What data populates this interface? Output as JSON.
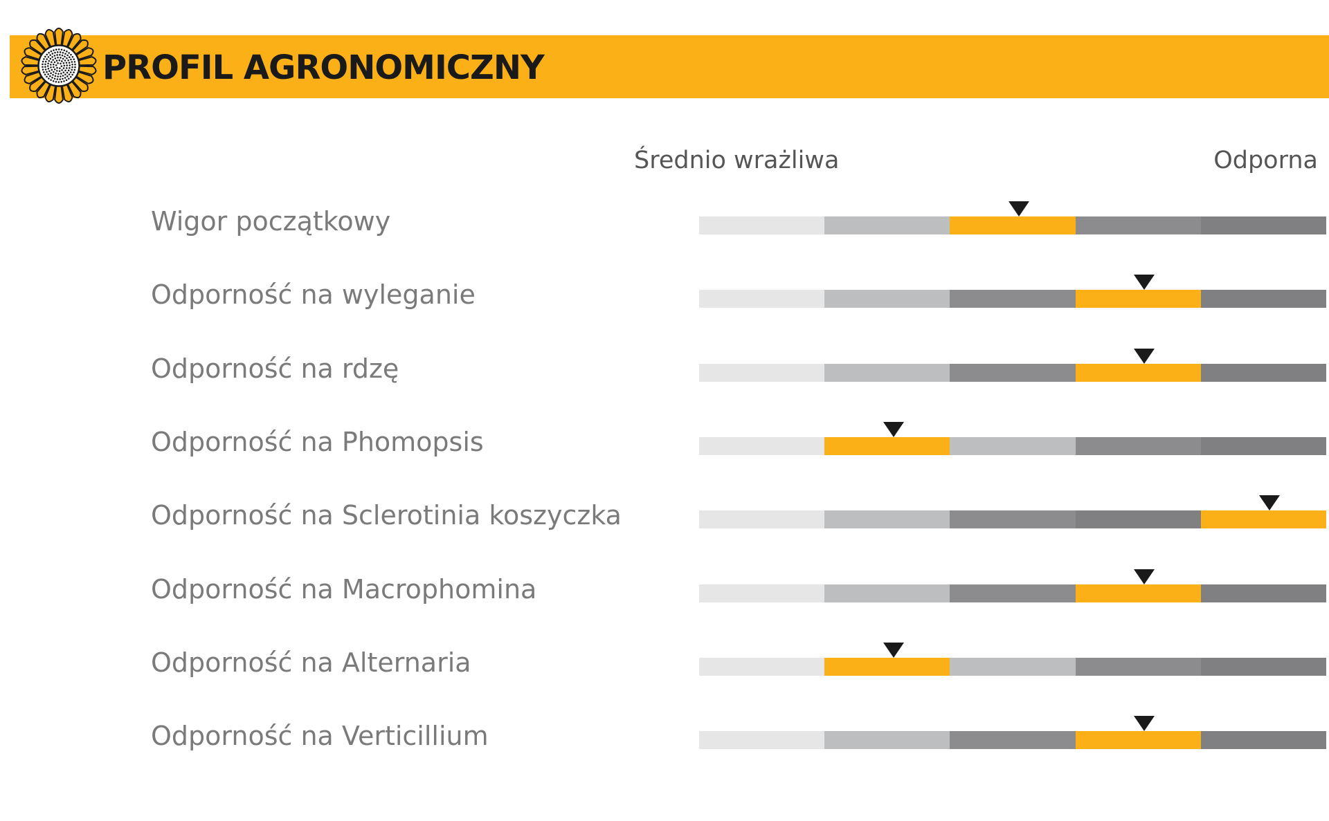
{
  "header": {
    "title": "PROFIL AGRONOMICZNY",
    "logo_icon": "sunflower-icon",
    "background_color": "#fbb017"
  },
  "scale": {
    "low_label": "Średnio wrażliwa",
    "high_label": "Odporna"
  },
  "colors": {
    "segments": [
      "#e6e6e7",
      "#bdbebf",
      "#8c8c8e",
      "#808082",
      "#77777a"
    ],
    "highlight": "#fbb017",
    "marker": "#1a1a1a"
  },
  "chart_data": {
    "type": "rating-scale",
    "levels": 5,
    "rows": [
      {
        "label": "Wigor początkowy",
        "level": 3
      },
      {
        "label": "Odporność na wyleganie",
        "level": 4
      },
      {
        "label": "Odporność na rdzę",
        "level": 4
      },
      {
        "label": "Odporność na Phomopsis",
        "level": 2
      },
      {
        "label": "Odporność na Sclerotinia koszyczka",
        "level": 5
      },
      {
        "label": "Odporność na Macrophomina",
        "level": 4
      },
      {
        "label": "Odporność na Alternaria",
        "level": 2
      },
      {
        "label": "Odporność na Verticillium",
        "level": 4
      }
    ]
  }
}
